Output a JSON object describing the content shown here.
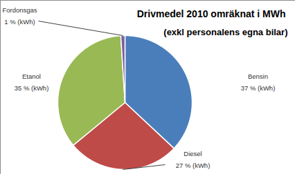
{
  "chart_data": {
    "type": "pie",
    "title": "Drivmedel 2010 omräknat i MWh",
    "subtitle": "(exkl personalens egna bilar)",
    "categories": [
      "Bensin",
      "Diesel",
      "Etanol",
      "Fordonsgas"
    ],
    "values": [
      37,
      27,
      35,
      1
    ],
    "value_labels": [
      "37 % (kWh)",
      "27 % (kWh)",
      "35 % (kWh)",
      "1 % (kWh)"
    ],
    "colors": [
      "#4a7ebb",
      "#be4b48",
      "#98b954",
      "#7d60a0"
    ],
    "data_labels": true
  }
}
